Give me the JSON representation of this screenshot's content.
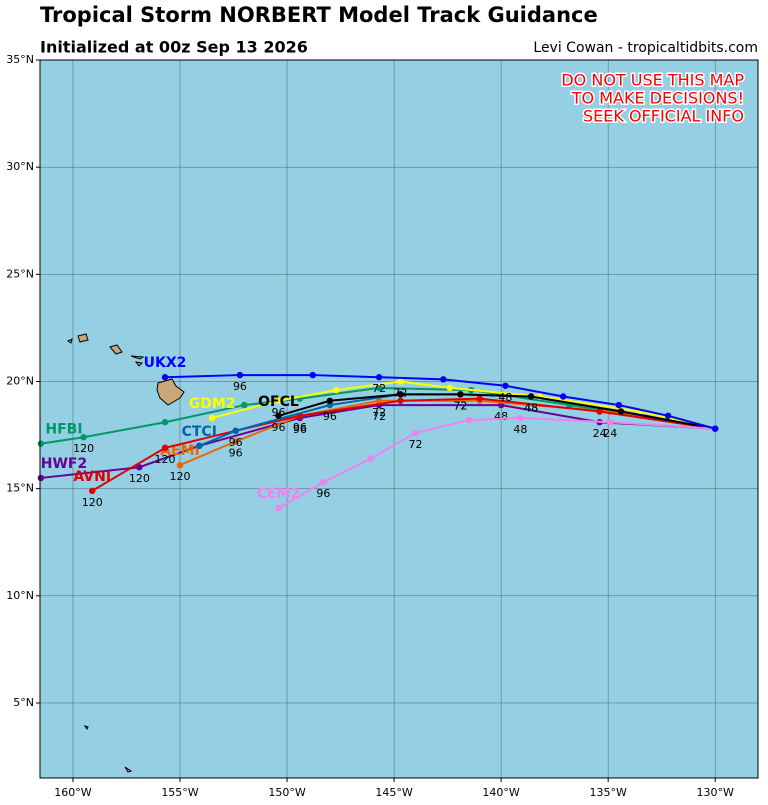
{
  "chart_data": {
    "type": "line",
    "title": "Tropical Storm NORBERT Model Track Guidance",
    "subtitle": "Initialized at 00z Sep 13 2026",
    "credit": "Levi Cowan - tropicaltidbits.com",
    "warning": [
      "DO NOT USE THIS MAP",
      "TO MAKE DECISIONS!",
      "SEEK OFFICIAL INFO"
    ],
    "xlim": [
      -161.54,
      -128.0
    ],
    "ylim": [
      1.5,
      35
    ],
    "xticks": [
      {
        "value": -160,
        "label": "160°W"
      },
      {
        "value": -155,
        "label": "155°W"
      },
      {
        "value": -150,
        "label": "150°W"
      },
      {
        "value": -145,
        "label": "145°W"
      },
      {
        "value": -140,
        "label": "140°W"
      },
      {
        "value": -135,
        "label": "135°W"
      },
      {
        "value": -130,
        "label": "130°W"
      }
    ],
    "yticks": [
      {
        "value": 5,
        "label": "5°N"
      },
      {
        "value": 10,
        "label": "10°N"
      },
      {
        "value": 15,
        "label": "15°N"
      },
      {
        "value": 20,
        "label": "20°N"
      },
      {
        "value": 25,
        "label": "25°N"
      },
      {
        "value": 30,
        "label": "30°N"
      },
      {
        "value": 35,
        "label": "35°N"
      }
    ],
    "grid": true,
    "series": [
      {
        "name": "HFBI",
        "color": "#009966",
        "x": [
          -130.0,
          -136.8,
          -141.4,
          -145.7,
          -149.4,
          -152.0,
          -155.7,
          -159.5,
          -161.5
        ],
        "values": [
          17.8,
          18.9,
          19.6,
          19.7,
          19.2,
          18.9,
          18.1,
          17.4,
          17.1
        ],
        "hour_labels": [
          null,
          null,
          null,
          null,
          null,
          null,
          null,
          "120",
          null
        ]
      },
      {
        "name": "HWF2",
        "color": "#660099",
        "x": [
          -130.0,
          -135.4,
          -140.0,
          -145.7,
          -149.4,
          -154.1,
          -156.9,
          -161.5
        ],
        "values": [
          17.8,
          18.1,
          18.9,
          18.9,
          18.3,
          17.0,
          16.0,
          15.5
        ],
        "hour_labels": [
          null,
          "24",
          "48",
          "72",
          "96",
          null,
          "120",
          null
        ]
      },
      {
        "name": "AEMI",
        "color": "#ee6600",
        "x": [
          -130.0,
          -134.9,
          -141.0,
          -145.7,
          -149.4,
          -152.4,
          -155.0
        ],
        "values": [
          17.8,
          18.6,
          19.1,
          19.1,
          18.4,
          17.2,
          16.1
        ],
        "hour_labels": [
          null,
          null,
          null,
          "72",
          "96",
          "96",
          "120"
        ]
      },
      {
        "name": "AVNI",
        "color": "#dd0000",
        "x": [
          -130.0,
          -135.4,
          -141.0,
          -144.7,
          -149.4,
          -152.4,
          -155.7,
          -159.1
        ],
        "values": [
          17.8,
          18.6,
          19.2,
          19.1,
          18.4,
          17.7,
          16.9,
          14.9
        ],
        "hour_labels": [
          null,
          null,
          null,
          null,
          null,
          null,
          "120",
          "120"
        ]
      },
      {
        "name": "CTCI",
        "color": "#0066aa",
        "x": [
          -130.0,
          -134.4,
          -138.6,
          -141.9,
          -144.7,
          -148.0,
          -152.4,
          -154.1
        ],
        "values": [
          17.8,
          18.6,
          19.3,
          19.4,
          19.4,
          18.9,
          17.7,
          17.0
        ],
        "hour_labels": [
          null,
          null,
          "48",
          "72",
          null,
          "96",
          "96",
          null
        ]
      },
      {
        "name": "GDM2",
        "color": "#ffff00",
        "x": [
          -130.0,
          -133.5,
          -138.2,
          -142.4,
          -144.7,
          -147.7,
          -150.4,
          -153.5
        ],
        "values": [
          17.8,
          18.6,
          19.3,
          19.7,
          20.0,
          19.6,
          19.1,
          18.3
        ],
        "hour_labels": [
          null,
          null,
          null,
          null,
          "72",
          null,
          "96",
          null
        ]
      },
      {
        "name": "OFCL",
        "color": "#000000",
        "x": [
          -130.0,
          -134.4,
          -138.6,
          -141.9,
          -144.7,
          -148.0,
          -150.4
        ],
        "values": [
          17.8,
          18.6,
          19.3,
          19.4,
          19.4,
          19.1,
          18.4
        ],
        "hour_labels": [
          null,
          null,
          "48",
          "72",
          null,
          null,
          "96"
        ]
      },
      {
        "name": "CEM2",
        "color": "#ee82ee",
        "x": [
          -130.0,
          -134.9,
          -139.1,
          -141.5,
          -144.0,
          -146.1,
          -148.3,
          -150.4
        ],
        "values": [
          17.8,
          18.1,
          18.3,
          18.2,
          17.6,
          16.4,
          15.3,
          14.1
        ],
        "hour_labels": [
          null,
          "24",
          "48",
          null,
          "72",
          null,
          "96",
          null
        ]
      },
      {
        "name": "UKX2",
        "color": "#0000ff",
        "x": [
          -130.0,
          -132.2,
          -134.5,
          -137.1,
          -139.8,
          -142.7,
          -145.7,
          -148.8,
          -152.2,
          -155.7
        ],
        "values": [
          17.8,
          18.4,
          18.9,
          19.3,
          19.8,
          20.1,
          20.2,
          20.3,
          20.3,
          20.2
        ],
        "hour_labels": [
          null,
          null,
          null,
          null,
          "48",
          null,
          "72",
          null,
          "96",
          null
        ]
      }
    ]
  }
}
